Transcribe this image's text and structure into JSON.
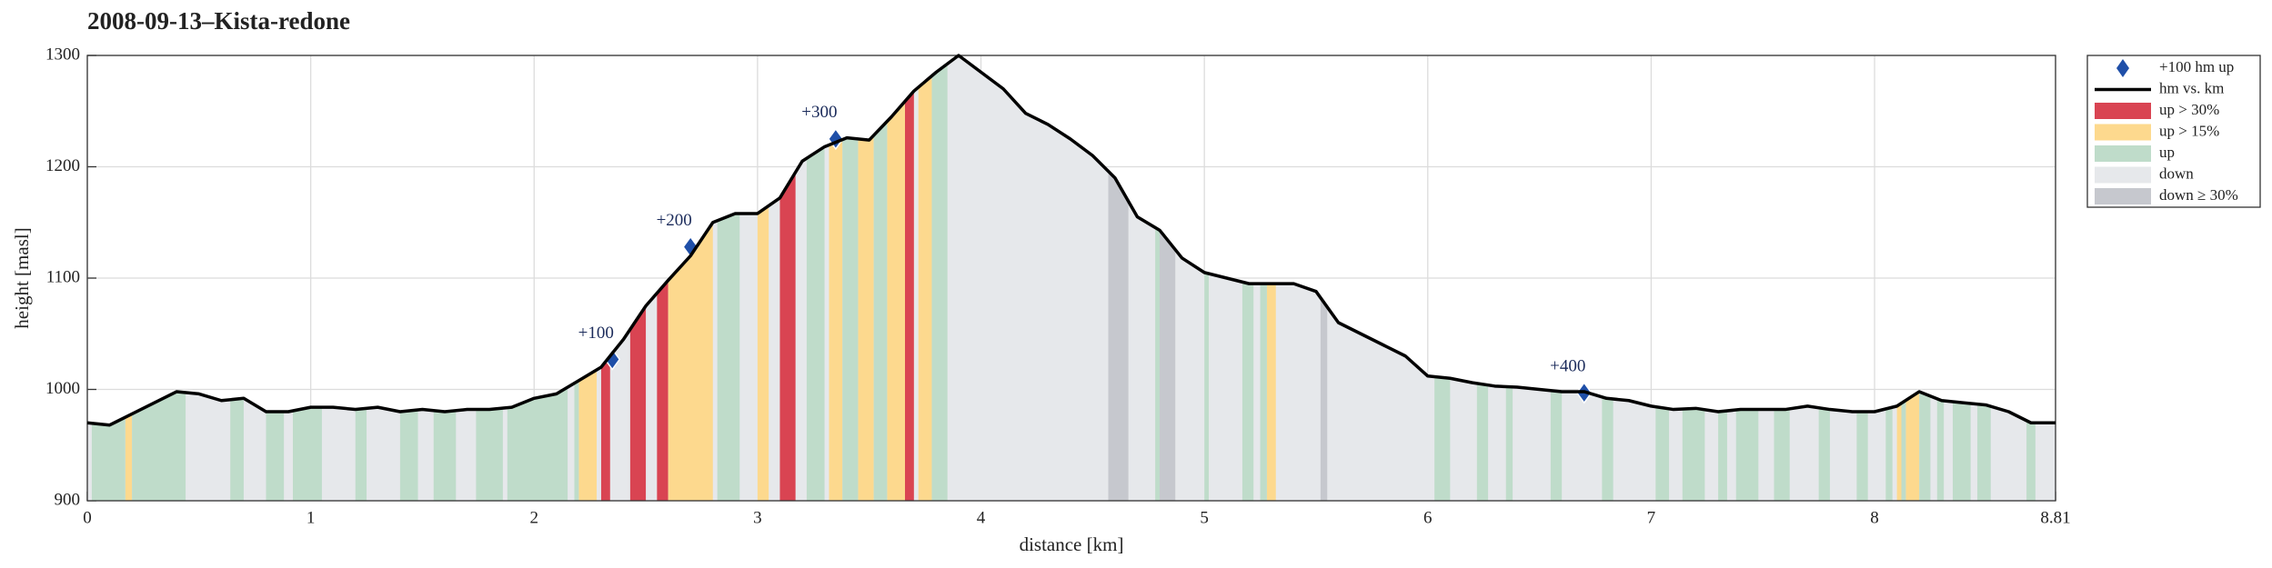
{
  "chart_data": {
    "type": "line",
    "title": "2008-09-13–Kista-redone",
    "xlabel": "distance [km]",
    "ylabel": "height [masl]",
    "xlim": [
      0,
      8.81
    ],
    "ylim": [
      900,
      1300
    ],
    "xticks": [
      0,
      1,
      2,
      3,
      4,
      5,
      6,
      7,
      8,
      8.81
    ],
    "yticks": [
      900,
      1000,
      1100,
      1200,
      1300
    ],
    "grid": true,
    "legend": "outside-upper-right",
    "series": [
      {
        "name": "+100 hm up",
        "kind": "markers",
        "color": "#1f4fa8",
        "x": [
          2.35,
          2.7,
          3.35,
          6.7
        ],
        "values": [
          1027,
          1128,
          1225,
          997
        ],
        "labels": [
          "+100",
          "+200",
          "+300",
          "+400"
        ]
      },
      {
        "name": "hm vs. km",
        "kind": "line",
        "color": "#000000",
        "x": [
          0,
          0.1,
          0.2,
          0.3,
          0.4,
          0.5,
          0.6,
          0.7,
          0.8,
          0.9,
          1.0,
          1.1,
          1.2,
          1.3,
          1.4,
          1.5,
          1.6,
          1.7,
          1.8,
          1.9,
          2.0,
          2.1,
          2.2,
          2.3,
          2.4,
          2.5,
          2.6,
          2.7,
          2.8,
          2.9,
          3.0,
          3.1,
          3.2,
          3.3,
          3.4,
          3.5,
          3.6,
          3.7,
          3.8,
          3.9,
          4.0,
          4.1,
          4.2,
          4.3,
          4.4,
          4.5,
          4.6,
          4.7,
          4.8,
          4.9,
          5.0,
          5.1,
          5.2,
          5.3,
          5.4,
          5.5,
          5.6,
          5.7,
          5.8,
          5.9,
          6.0,
          6.1,
          6.2,
          6.3,
          6.4,
          6.5,
          6.6,
          6.7,
          6.8,
          6.9,
          7.0,
          7.1,
          7.2,
          7.3,
          7.4,
          7.5,
          7.6,
          7.7,
          7.8,
          7.9,
          8.0,
          8.1,
          8.2,
          8.3,
          8.4,
          8.5,
          8.6,
          8.7,
          8.81
        ],
        "values": [
          970,
          968,
          978,
          988,
          998,
          996,
          990,
          992,
          980,
          980,
          984,
          984,
          982,
          984,
          980,
          982,
          980,
          982,
          982,
          984,
          992,
          996,
          1008,
          1020,
          1045,
          1075,
          1098,
          1120,
          1150,
          1158,
          1158,
          1172,
          1205,
          1218,
          1226,
          1224,
          1245,
          1268,
          1285,
          1300,
          1285,
          1270,
          1248,
          1238,
          1225,
          1210,
          1190,
          1155,
          1143,
          1118,
          1105,
          1100,
          1095,
          1095,
          1095,
          1088,
          1060,
          1050,
          1040,
          1030,
          1012,
          1010,
          1006,
          1003,
          1002,
          1000,
          998,
          998,
          992,
          990,
          985,
          982,
          983,
          980,
          982,
          982,
          982,
          985,
          982,
          980,
          980,
          985,
          998,
          990,
          988,
          986,
          980,
          970,
          970
        ]
      }
    ],
    "fills": [
      {
        "name": "up > 30%",
        "color": "#d94452",
        "bands": [
          [
            2.3,
            2.34
          ],
          [
            2.43,
            2.5
          ],
          [
            2.55,
            2.6
          ],
          [
            3.1,
            3.17
          ],
          [
            3.65,
            3.7
          ]
        ]
      },
      {
        "name": "up > 15%",
        "color": "#fdd98e",
        "bands": [
          [
            0.17,
            0.2
          ],
          [
            2.2,
            2.28
          ],
          [
            2.6,
            2.8
          ],
          [
            3.0,
            3.05
          ],
          [
            3.32,
            3.38
          ],
          [
            3.45,
            3.52
          ],
          [
            3.58,
            3.66
          ],
          [
            3.72,
            3.78
          ],
          [
            5.28,
            5.32
          ],
          [
            8.1,
            8.12
          ],
          [
            8.14,
            8.2
          ]
        ]
      },
      {
        "name": "up",
        "color": "#bfdcca",
        "bands": [
          [
            0.02,
            0.17
          ],
          [
            0.2,
            0.44
          ],
          [
            0.64,
            0.7
          ],
          [
            0.8,
            0.88
          ],
          [
            0.92,
            1.05
          ],
          [
            1.2,
            1.25
          ],
          [
            1.4,
            1.48
          ],
          [
            1.55,
            1.65
          ],
          [
            1.74,
            1.86
          ],
          [
            1.88,
            2.15
          ],
          [
            2.18,
            2.2
          ],
          [
            2.82,
            2.92
          ],
          [
            3.22,
            3.3
          ],
          [
            3.38,
            3.45
          ],
          [
            3.52,
            3.58
          ],
          [
            3.78,
            3.85
          ],
          [
            4.78,
            4.8
          ],
          [
            5.0,
            5.02
          ],
          [
            5.17,
            5.22
          ],
          [
            5.25,
            5.28
          ],
          [
            6.03,
            6.1
          ],
          [
            6.22,
            6.27
          ],
          [
            6.35,
            6.38
          ],
          [
            6.55,
            6.6
          ],
          [
            6.78,
            6.83
          ],
          [
            7.02,
            7.08
          ],
          [
            7.14,
            7.24
          ],
          [
            7.3,
            7.34
          ],
          [
            7.38,
            7.48
          ],
          [
            7.55,
            7.62
          ],
          [
            7.75,
            7.8
          ],
          [
            7.92,
            7.97
          ],
          [
            8.05,
            8.08
          ],
          [
            8.12,
            8.14
          ],
          [
            8.2,
            8.25
          ],
          [
            8.28,
            8.31
          ],
          [
            8.35,
            8.43
          ],
          [
            8.46,
            8.52
          ],
          [
            8.68,
            8.72
          ]
        ]
      },
      {
        "name": "down",
        "color": "#e6e8eb",
        "bands": []
      },
      {
        "name": "down ≥ 30%",
        "color": "#c6c8ce",
        "bands": [
          [
            4.57,
            4.66
          ],
          [
            4.8,
            4.87
          ],
          [
            5.52,
            5.55
          ]
        ]
      }
    ]
  }
}
